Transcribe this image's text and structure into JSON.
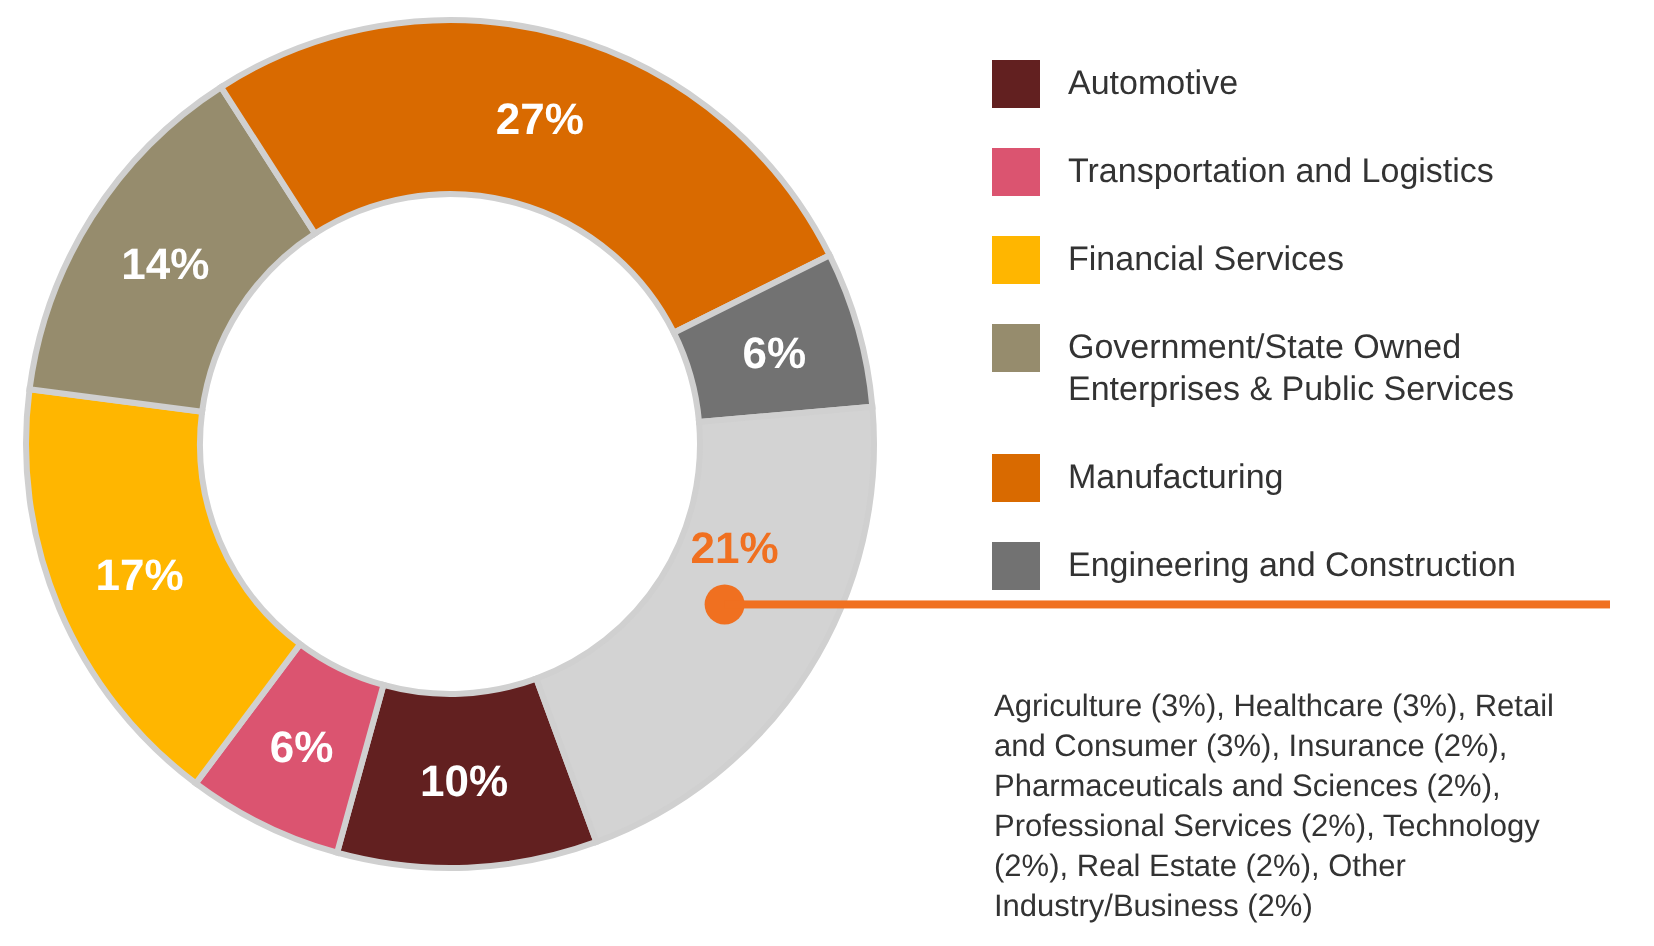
{
  "chart_data": {
    "type": "donut",
    "categories": [
      "Automotive",
      "Transportation and Logistics",
      "Financial Services",
      "Government/State Owned Enterprises & Public Services",
      "Manufacturing",
      "Engineering and Construction",
      null
    ],
    "values": [
      10,
      6,
      17,
      14,
      27,
      6,
      21
    ],
    "colors": [
      "#622020",
      "#db5470",
      "#ffb600",
      "#968c6d",
      "#d96a00",
      "#727272",
      "#d3d3d3"
    ],
    "value_labels": [
      "10%",
      "6%",
      "17%",
      "14%",
      "27%",
      "6%",
      "21%"
    ],
    "legend": "right",
    "annotations": [
      "Agriculture (3%), Healthcare (3%), Retail and Consumer (3%), Insurance (2%), Pharmaceuticals and Sciences (2%), Professional Services (2%), Technology (2%), Real Estate (2%), Other Industry/Business (2%)"
    ]
  }
}
